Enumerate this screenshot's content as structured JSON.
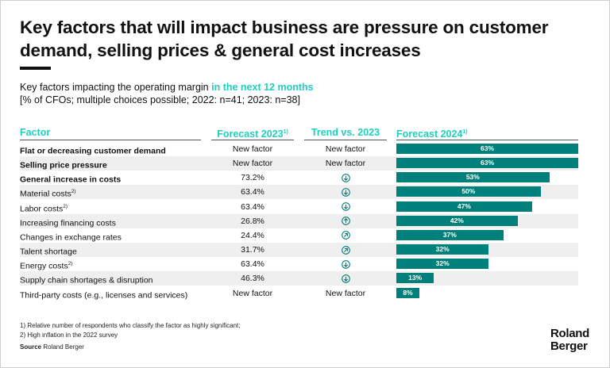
{
  "title": "Key factors that will impact business are pressure on customer demand, selling prices & general cost increases",
  "subtitle": {
    "text": "Key factors impacting the operating margin ",
    "highlight": "in the next 12 months",
    "note": "[% of CFOs; multiple choices possible; 2022: n=41; 2023: n=38]"
  },
  "colors": {
    "accent": "#1fcfc0",
    "bar": "#00807a",
    "row_alt": "#efefef"
  },
  "headers": {
    "factor": "Factor",
    "forecast2023": "Forecast 2023",
    "forecast2023_sup": "1)",
    "trend": "Trend vs. 2023",
    "forecast2024": "Forecast 2024",
    "forecast2024_sup": "1)"
  },
  "chart_data": {
    "type": "bar",
    "orientation": "horizontal",
    "xlim": [
      0,
      63
    ],
    "rows": [
      {
        "factor": "Flat or decreasing customer demand",
        "sup": "",
        "f2023": "New factor",
        "trend": "new",
        "value": 63,
        "label": "63%"
      },
      {
        "factor": "Selling price pressure",
        "sup": "",
        "f2023": "New factor",
        "trend": "new",
        "value": 63,
        "label": "63%"
      },
      {
        "factor": "General increase in costs",
        "sup": "",
        "f2023": "73.2%",
        "trend": "down",
        "value": 53,
        "label": "53%"
      },
      {
        "factor": "Material costs",
        "sup": "2)",
        "f2023": "63.4%",
        "trend": "down",
        "value": 50,
        "label": "50%"
      },
      {
        "factor": "Labor costs",
        "sup": "2)",
        "f2023": "63.4%",
        "trend": "down",
        "value": 47,
        "label": "47%"
      },
      {
        "factor": "Increasing financing costs",
        "sup": "",
        "f2023": "26.8%",
        "trend": "up",
        "value": 42,
        "label": "42%"
      },
      {
        "factor": "Changes in exchange rates",
        "sup": "",
        "f2023": "24.4%",
        "trend": "up-right",
        "value": 37,
        "label": "37%"
      },
      {
        "factor": "Talent shortage",
        "sup": "",
        "f2023": "31.7%",
        "trend": "up-right",
        "value": 32,
        "label": "32%"
      },
      {
        "factor": "Energy costs",
        "sup": "2)",
        "f2023": "63.4%",
        "trend": "down",
        "value": 32,
        "label": "32%"
      },
      {
        "factor": "Supply chain shortages & disruption",
        "sup": "",
        "f2023": "46.3%",
        "trend": "down",
        "value": 13,
        "label": "13%"
      },
      {
        "factor": "Third-party costs (e.g., licenses and services)",
        "sup": "",
        "f2023": "New factor",
        "trend": "new",
        "value": 8,
        "label": "8%"
      }
    ],
    "new_factor_label": "New factor"
  },
  "footnotes": [
    "1) Relative number of respondents who classify the factor as highly significant;",
    "2) High inflation in the 2022 survey"
  ],
  "source": {
    "label": "Source",
    "text": " Roland Berger"
  },
  "logo": {
    "line1": "Roland",
    "line2": "Berger"
  }
}
